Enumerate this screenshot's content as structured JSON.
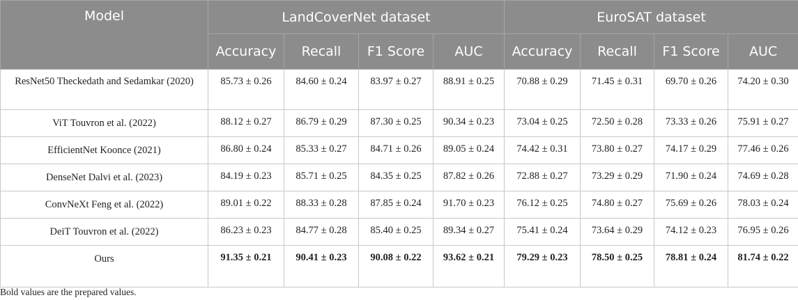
{
  "header": {
    "model_label": "Model",
    "group1": "LandCoverNet dataset",
    "group2": "EuroSAT dataset",
    "metrics": [
      "Accuracy",
      "Recall",
      "F1 Score",
      "AUC",
      "Accuracy",
      "Recall",
      "F1 Score",
      "AUC"
    ]
  },
  "rows": [
    {
      "model": "ResNet50 Theckedath and Sedamkar (2020)",
      "values": [
        "85.73 ± 0.26",
        "84.60 ± 0.24",
        "83.97 ± 0.27",
        "88.91 ± 0.25",
        "70.88 ± 0.29",
        "71.45 ± 0.31",
        "69.70 ± 0.26",
        "74.20 ± 0.30"
      ]
    },
    {
      "model": "ViT Touvron et al. (2022)",
      "values": [
        "88.12 ± 0.27",
        "86.79 ± 0.29",
        "87.30 ± 0.25",
        "90.34 ± 0.23",
        "73.04 ± 0.25",
        "72.50 ± 0.28",
        "73.33 ± 0.26",
        "75.91 ± 0.27"
      ]
    },
    {
      "model": "EfficientNet Koonce (2021)",
      "values": [
        "86.80 ± 0.24",
        "85.33 ± 0.27",
        "84.71 ± 0.26",
        "89.05 ± 0.24",
        "74.42 ± 0.31",
        "73.80 ± 0.27",
        "74.17 ± 0.29",
        "77.46 ± 0.26"
      ]
    },
    {
      "model": "DenseNet Dalvi et al. (2023)",
      "values": [
        "84.19 ± 0.23",
        "85.71 ± 0.25",
        "84.35 ± 0.25",
        "87.82 ± 0.26",
        "72.88 ± 0.27",
        "73.29 ± 0.29",
        "71.90 ± 0.24",
        "74.69 ± 0.28"
      ]
    },
    {
      "model": "ConvNeXt Feng et al. (2022)",
      "values": [
        "89.01 ± 0.22",
        "88.33 ± 0.28",
        "87.85 ± 0.24",
        "91.70 ± 0.23",
        "76.12 ± 0.25",
        "74.80 ± 0.27",
        "75.69 ± 0.26",
        "78.03 ± 0.24"
      ]
    },
    {
      "model": "DeiT Touvron et al. (2022)",
      "values": [
        "86.23 ± 0.23",
        "84.77 ± 0.28",
        "85.40 ± 0.25",
        "89.34 ± 0.27",
        "75.41 ± 0.24",
        "73.64 ± 0.29",
        "74.12 ± 0.23",
        "76.95 ± 0.26"
      ]
    },
    {
      "model": "Ours",
      "values": [
        "91.35 ± 0.21",
        "90.41 ± 0.23",
        "90.08 ± 0.22",
        "93.62 ± 0.21",
        "79.29 ± 0.23",
        "78.50 ± 0.25",
        "78.81 ± 0.24",
        "81.74 ± 0.22"
      ]
    }
  ],
  "footnote": "Bold values are the prepared values."
}
